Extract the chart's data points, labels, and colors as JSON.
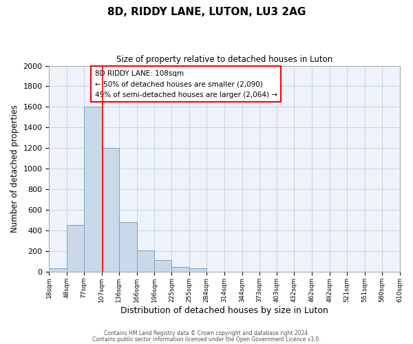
{
  "title": "8D, RIDDY LANE, LUTON, LU3 2AG",
  "subtitle": "Size of property relative to detached houses in Luton",
  "xlabel": "Distribution of detached houses by size in Luton",
  "ylabel": "Number of detached properties",
  "bar_color": "#c9d9ea",
  "bar_edge_color": "#7aA0c0",
  "grid_color": "#c8d4e4",
  "background_color": "#eef2fa",
  "red_line_x": 108,
  "bin_edges": [
    18,
    48,
    77,
    107,
    136,
    166,
    196,
    225,
    255,
    284,
    314,
    344,
    373,
    403,
    432,
    462,
    492,
    521,
    551,
    580,
    610
  ],
  "bin_labels": [
    "18sqm",
    "48sqm",
    "77sqm",
    "107sqm",
    "136sqm",
    "166sqm",
    "196sqm",
    "225sqm",
    "255sqm",
    "284sqm",
    "314sqm",
    "344sqm",
    "373sqm",
    "403sqm",
    "432sqm",
    "462sqm",
    "492sqm",
    "521sqm",
    "551sqm",
    "580sqm",
    "610sqm"
  ],
  "counts": [
    35,
    455,
    1600,
    1200,
    480,
    205,
    115,
    45,
    30,
    0,
    0,
    0,
    0,
    0,
    0,
    0,
    0,
    0,
    0,
    0
  ],
  "ylim": [
    0,
    2000
  ],
  "yticks": [
    0,
    200,
    400,
    600,
    800,
    1000,
    1200,
    1400,
    1600,
    1800,
    2000
  ],
  "annotation_title": "8D RIDDY LANE: 108sqm",
  "annotation_line1": "← 50% of detached houses are smaller (2,090)",
  "annotation_line2": "49% of semi-detached houses are larger (2,064) →",
  "footnote1": "Contains HM Land Registry data © Crown copyright and database right 2024.",
  "footnote2": "Contains public sector information licensed under the Open Government Licence v3.0."
}
